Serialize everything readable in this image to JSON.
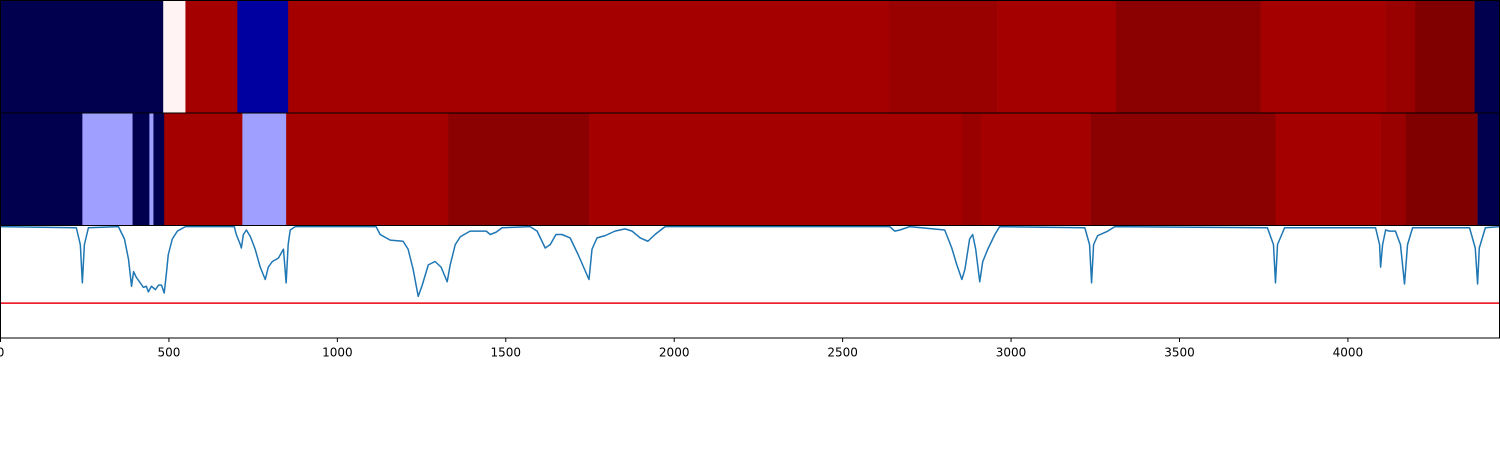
{
  "chart_data": [
    {
      "type": "strip",
      "xlim": [
        0,
        4450
      ],
      "boundaries": [
        0,
        483,
        549,
        703,
        854,
        2637,
        2960,
        3311,
        3741,
        4112,
        4200,
        4376,
        4450
      ],
      "colors": [
        "#00004f",
        "#fff3f3",
        "#a50000",
        "#0000a0",
        "#a50000",
        "#990000",
        "#a50000",
        "#8b0000",
        "#a50000",
        "#990000",
        "#800000",
        "#00004f"
      ]
    },
    {
      "type": "strip",
      "xlim": [
        0,
        4450
      ],
      "boundaries": [
        0,
        243,
        392,
        442,
        454,
        486,
        718,
        848,
        1329,
        1747,
        2854,
        2910,
        3236,
        3785,
        4097,
        4171,
        4385,
        4450
      ],
      "colors": [
        "#00004f",
        "#9f9fff",
        "#00004f",
        "#9f9fff",
        "#00004f",
        "#a50000",
        "#9f9fff",
        "#a50000",
        "#8b0000",
        "#a50000",
        "#990000",
        "#a50000",
        "#8b0000",
        "#a50000",
        "#990000",
        "#800000",
        "#00004f"
      ]
    },
    {
      "type": "line",
      "xlim": [
        0,
        4450
      ],
      "ylim": [
        0,
        1
      ],
      "xticks": [
        0,
        500,
        1000,
        1500,
        2000,
        2500,
        3000,
        3500,
        4000
      ],
      "threshold": 0.31,
      "threshold_color": "#e8000b",
      "x": [
        0,
        225,
        237,
        243,
        249,
        261,
        350,
        368,
        380,
        389,
        395,
        403,
        415,
        424,
        433,
        439,
        448,
        460,
        469,
        478,
        486,
        492,
        498,
        510,
        525,
        549,
        694,
        700,
        712,
        715,
        721,
        730,
        742,
        756,
        771,
        786,
        795,
        807,
        825,
        840,
        848,
        854,
        860,
        875,
        1115,
        1127,
        1157,
        1195,
        1210,
        1225,
        1240,
        1252,
        1270,
        1290,
        1308,
        1326,
        1335,
        1350,
        1365,
        1394,
        1442,
        1454,
        1471,
        1489,
        1572,
        1593,
        1617,
        1632,
        1649,
        1667,
        1691,
        1715,
        1747,
        1756,
        1771,
        1795,
        1824,
        1854,
        1875,
        1899,
        1922,
        1943,
        1973,
        2640,
        2655,
        2670,
        2699,
        2803,
        2824,
        2839,
        2854,
        2863,
        2877,
        2886,
        2895,
        2907,
        2916,
        2931,
        2952,
        2966,
        3219,
        3233,
        3239,
        3245,
        3257,
        3287,
        3308,
        3761,
        3779,
        3785,
        3791,
        3812,
        4082,
        4094,
        4097,
        4103,
        4112,
        4123,
        4141,
        4156,
        4168,
        4177,
        4192,
        4361,
        4378,
        4385,
        4390,
        4408,
        4450
      ],
      "series": [
        {
          "color": "#1f77b4",
          "values": [
            0.99,
            0.98,
            0.83,
            0.49,
            0.83,
            0.98,
            0.99,
            0.88,
            0.7,
            0.46,
            0.59,
            0.54,
            0.49,
            0.45,
            0.46,
            0.41,
            0.46,
            0.43,
            0.47,
            0.47,
            0.4,
            0.56,
            0.74,
            0.88,
            0.95,
            0.99,
            0.99,
            0.92,
            0.83,
            0.8,
            0.92,
            0.96,
            0.9,
            0.79,
            0.63,
            0.52,
            0.63,
            0.68,
            0.71,
            0.79,
            0.49,
            0.83,
            0.96,
            0.99,
            0.99,
            0.92,
            0.87,
            0.86,
            0.79,
            0.61,
            0.37,
            0.47,
            0.65,
            0.68,
            0.63,
            0.5,
            0.65,
            0.83,
            0.9,
            0.95,
            0.95,
            0.92,
            0.94,
            0.98,
            0.99,
            0.95,
            0.8,
            0.83,
            0.92,
            0.92,
            0.89,
            0.74,
            0.52,
            0.79,
            0.89,
            0.91,
            0.95,
            0.97,
            0.95,
            0.89,
            0.86,
            0.92,
            0.99,
            0.99,
            0.95,
            0.96,
            0.99,
            0.96,
            0.8,
            0.65,
            0.52,
            0.61,
            0.88,
            0.92,
            0.79,
            0.5,
            0.68,
            0.79,
            0.92,
            0.99,
            0.98,
            0.83,
            0.49,
            0.83,
            0.91,
            0.95,
            0.99,
            0.98,
            0.83,
            0.49,
            0.83,
            0.98,
            0.98,
            0.83,
            0.63,
            0.83,
            0.96,
            0.95,
            0.95,
            0.83,
            0.48,
            0.83,
            0.98,
            0.98,
            0.8,
            0.48,
            0.8,
            0.98,
            0.99
          ]
        }
      ]
    }
  ]
}
